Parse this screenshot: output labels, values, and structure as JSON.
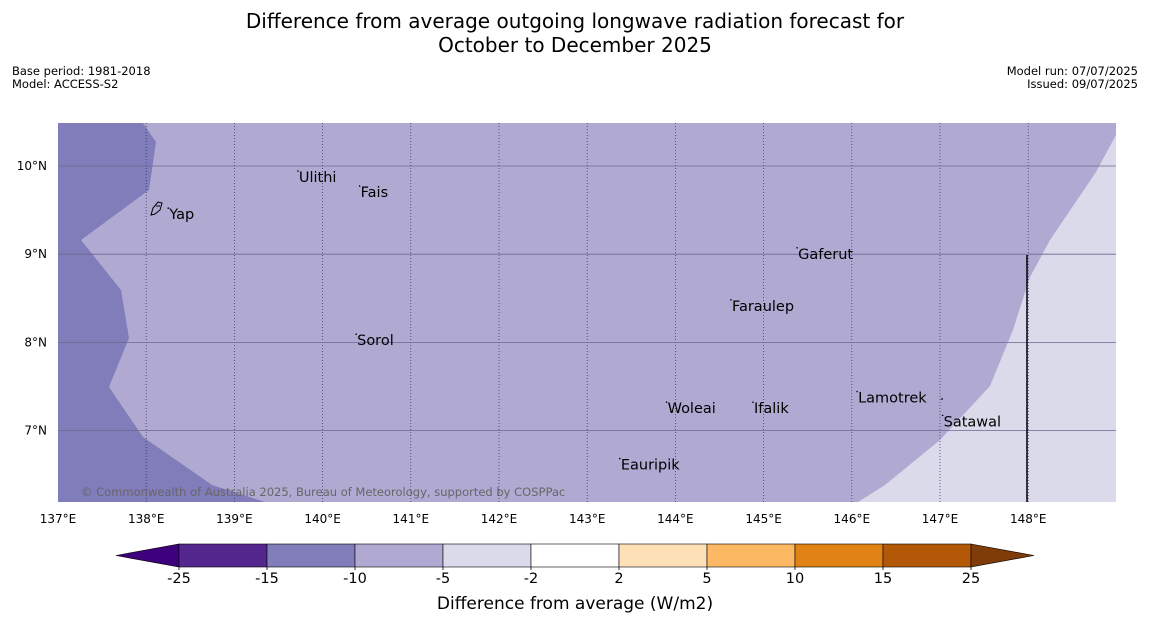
{
  "title": {
    "line1": "Difference from average outgoing longwave radiation forecast for",
    "line2": "October to December 2025"
  },
  "meta": {
    "base_period": "Base period: 1981-2018",
    "model": "Model: ACCESS-S2",
    "model_run": "Model run: 07/07/2025",
    "issued": "Issued: 09/07/2025"
  },
  "map": {
    "lon_range": [
      137,
      149
    ],
    "lat_range": [
      6.2,
      10.5
    ],
    "lon_ticks": [
      "137°E",
      "138°E",
      "139°E",
      "140°E",
      "141°E",
      "142°E",
      "143°E",
      "144°E",
      "145°E",
      "146°E",
      "147°E",
      "148°E"
    ],
    "lat_ticks": [
      "10°N",
      "9°N",
      "8°N",
      "7°N"
    ],
    "copyright": "© Commonwealth of Australia 2025, Bureau of Meteorology, supported by COSPPac",
    "places": [
      {
        "name": "Yap",
        "lon": 138.25,
        "lat": 9.5
      },
      {
        "name": "Ulithi",
        "lon": 139.72,
        "lat": 9.92
      },
      {
        "name": "Fais",
        "lon": 140.42,
        "lat": 9.75
      },
      {
        "name": "Gaferut",
        "lon": 145.38,
        "lat": 9.05
      },
      {
        "name": "Faraulep",
        "lon": 144.63,
        "lat": 8.46
      },
      {
        "name": "Sorol",
        "lon": 140.38,
        "lat": 8.07
      },
      {
        "name": "Woleai",
        "lon": 143.9,
        "lat": 7.3
      },
      {
        "name": "Ifalik",
        "lon": 144.88,
        "lat": 7.3
      },
      {
        "name": "Lamotrek",
        "lon": 146.06,
        "lat": 7.42
      },
      {
        "name": "Satawal",
        "lon": 147.03,
        "lat": 7.15
      },
      {
        "name": "Eauripik",
        "lon": 143.37,
        "lat": 6.66
      }
    ]
  },
  "colorbar": {
    "label": "Difference from average (W/m2)",
    "ticks": [
      "-25",
      "-15",
      "-10",
      "-5",
      "-2",
      "2",
      "5",
      "10",
      "15",
      "25"
    ],
    "colors": [
      "#3f007d",
      "#54278f",
      "#807dba",
      "#b0aad2",
      "#dadaeb",
      "#ffffff",
      "#fee0b6",
      "#fdb863",
      "#e08214",
      "#b35806",
      "#7f3b08"
    ]
  }
}
